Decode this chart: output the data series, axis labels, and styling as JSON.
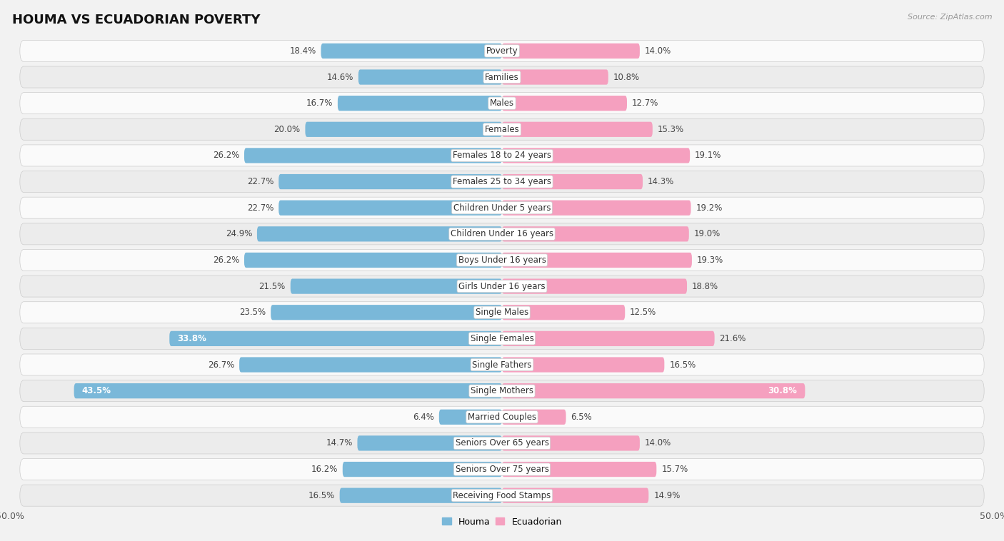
{
  "title": "HOUMA VS ECUADORIAN POVERTY",
  "source": "Source: ZipAtlas.com",
  "categories": [
    "Poverty",
    "Families",
    "Males",
    "Females",
    "Females 18 to 24 years",
    "Females 25 to 34 years",
    "Children Under 5 years",
    "Children Under 16 years",
    "Boys Under 16 years",
    "Girls Under 16 years",
    "Single Males",
    "Single Females",
    "Single Fathers",
    "Single Mothers",
    "Married Couples",
    "Seniors Over 65 years",
    "Seniors Over 75 years",
    "Receiving Food Stamps"
  ],
  "houma_values": [
    18.4,
    14.6,
    16.7,
    20.0,
    26.2,
    22.7,
    22.7,
    24.9,
    26.2,
    21.5,
    23.5,
    33.8,
    26.7,
    43.5,
    6.4,
    14.7,
    16.2,
    16.5
  ],
  "ecuadorian_values": [
    14.0,
    10.8,
    12.7,
    15.3,
    19.1,
    14.3,
    19.2,
    19.0,
    19.3,
    18.8,
    12.5,
    21.6,
    16.5,
    30.8,
    6.5,
    14.0,
    15.7,
    14.9
  ],
  "houma_color": "#7ab8d9",
  "ecuadorian_color": "#f5a0bf",
  "houma_large_color": "#5b9ec9",
  "ecuadorian_large_color": "#e8607a",
  "bar_height": 0.58,
  "xlim": 50.0,
  "background_color": "#f2f2f2",
  "row_light": "#fafafa",
  "row_dark": "#ececec",
  "label_fontsize": 8.5,
  "title_fontsize": 13,
  "axis_label_fontsize": 9,
  "legend_fontsize": 9,
  "category_fontsize": 8.5,
  "large_threshold_houma": 30.0,
  "large_threshold_ecu": 28.0
}
